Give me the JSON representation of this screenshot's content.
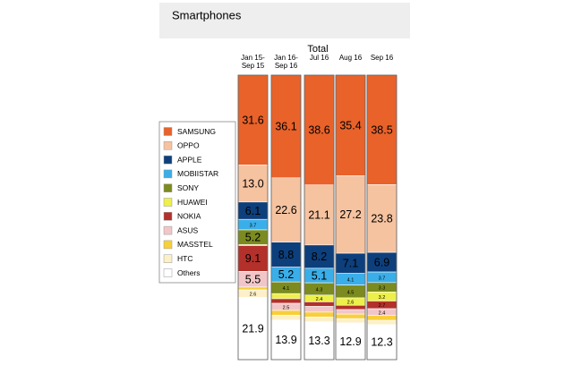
{
  "chart_data": {
    "type": "stacked-bar-100",
    "title": "Smartphones",
    "subtitle": "Total",
    "categories": [
      "Jan 15-\nSep 15",
      "Jan 16-\nSep 16",
      "Jul 16",
      "Aug 16",
      "Sep 16"
    ],
    "series": [
      {
        "name": "SAMSUNG",
        "color": "#e8622a",
        "values": [
          31.6,
          36.1,
          38.6,
          35.4,
          38.5
        ],
        "value_labels": [
          "31.6",
          "36.1",
          "38.6",
          "35.4",
          "38.5"
        ]
      },
      {
        "name": "OPPO",
        "color": "#f6c3a0",
        "values": [
          13.0,
          22.6,
          21.1,
          27.2,
          23.8
        ],
        "value_labels": [
          "13.0",
          "22.6",
          "21.1",
          "27.2",
          "23.8"
        ]
      },
      {
        "name": "APPLE",
        "color": "#0d3f7c",
        "values": [
          6.1,
          8.8,
          8.2,
          7.1,
          6.9
        ],
        "value_labels": [
          "6.1",
          "8.8",
          "8.2",
          "7.1",
          "6.9"
        ]
      },
      {
        "name": "MOBIISTAR",
        "color": "#3aaee8",
        "values": [
          3.7,
          5.2,
          5.1,
          4.1,
          3.7
        ],
        "value_labels": [
          "3.7",
          "5.2",
          "5.1",
          "4.1",
          "3.7"
        ]
      },
      {
        "name": "SONY",
        "color": "#7b8b1f",
        "values": [
          5.2,
          4.1,
          4.3,
          4.5,
          3.3
        ],
        "value_labels": [
          "5.2",
          "4.1",
          "4.3",
          "4.5",
          "3.3"
        ]
      },
      {
        "name": "HUAWEI",
        "color": "#eef04a",
        "values": [
          0.3,
          1.8,
          2.4,
          2.6,
          3.2
        ],
        "value_labels": [
          null,
          null,
          "2.4",
          "2.6",
          "3.2"
        ]
      },
      {
        "name": "NOKIA",
        "color": "#b3302b",
        "values": [
          9.1,
          1.6,
          1.6,
          1.5,
          2.7
        ],
        "value_labels": [
          "9.1",
          null,
          null,
          null,
          "2.7"
        ]
      },
      {
        "name": "ASUS",
        "color": "#f2c6c8",
        "values": [
          5.5,
          2.5,
          2.0,
          1.6,
          2.4
        ],
        "value_labels": [
          "5.5",
          "2.5",
          null,
          null,
          "2.4"
        ]
      },
      {
        "name": "MASSTEL",
        "color": "#f8cf3a",
        "values": [
          1.0,
          1.7,
          1.7,
          1.6,
          1.7
        ],
        "value_labels": [
          null,
          null,
          null,
          null,
          null
        ]
      },
      {
        "name": "HTC",
        "color": "#fdf0c8",
        "values": [
          2.6,
          1.7,
          1.7,
          1.5,
          1.5
        ],
        "value_labels": [
          "2.6",
          null,
          null,
          null,
          null
        ]
      },
      {
        "name": "Others",
        "color": "#ffffff",
        "values": [
          21.9,
          13.9,
          13.3,
          12.9,
          12.3
        ],
        "value_labels": [
          "21.9",
          "13.9",
          "13.3",
          "12.9",
          "12.3"
        ]
      }
    ]
  }
}
